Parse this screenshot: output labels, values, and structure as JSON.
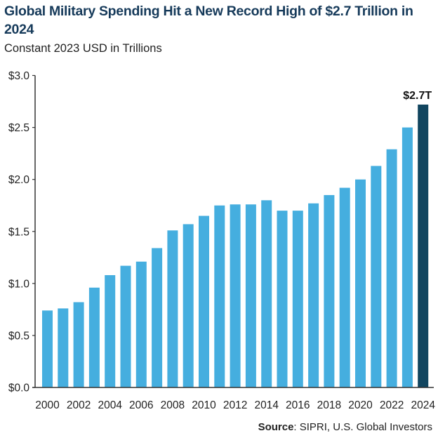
{
  "header": {
    "title": "Global Military Spending Hit a New Record High of $2.7 Trillion in 2024",
    "subtitle": "Constant 2023 USD in Trillions"
  },
  "footer": {
    "source_label": "Source",
    "source_text": ": SIPRI, U.S. Global Investors"
  },
  "chart_data": {
    "type": "bar",
    "title": "Global Military Spending Hit a New Record High of $2.7 Trillion in 2024",
    "subtitle": "Constant 2023 USD in Trillions",
    "categories": [
      "2000",
      "2001",
      "2002",
      "2003",
      "2004",
      "2005",
      "2006",
      "2007",
      "2008",
      "2009",
      "2010",
      "2011",
      "2012",
      "2013",
      "2014",
      "2015",
      "2016",
      "2017",
      "2018",
      "2019",
      "2020",
      "2021",
      "2022",
      "2023",
      "2024"
    ],
    "values": [
      0.74,
      0.76,
      0.82,
      0.96,
      1.08,
      1.17,
      1.21,
      1.34,
      1.51,
      1.57,
      1.65,
      1.75,
      1.76,
      1.76,
      1.8,
      1.7,
      1.7,
      1.77,
      1.85,
      1.92,
      2.0,
      2.13,
      2.29,
      2.5,
      2.72
    ],
    "x_tick_labels": [
      "2000",
      "2002",
      "2004",
      "2006",
      "2008",
      "2010",
      "2012",
      "2014",
      "2016",
      "2018",
      "2020",
      "2022",
      "2024"
    ],
    "y_tick_labels": [
      "$0.0",
      "$0.5",
      "$1.0",
      "$1.5",
      "$2.0",
      "$2.5",
      "$3.0"
    ],
    "y_ticks": [
      0,
      0.5,
      1.0,
      1.5,
      2.0,
      2.5,
      3.0
    ],
    "ylim": [
      0,
      3.0
    ],
    "xlabel": "",
    "ylabel": "",
    "grid": false,
    "annotations": [
      {
        "category": "2024",
        "text": "$2.7T"
      }
    ],
    "colors": {
      "bar": "#45aedf",
      "highlight": "#11455f",
      "axis": "#333333"
    }
  }
}
